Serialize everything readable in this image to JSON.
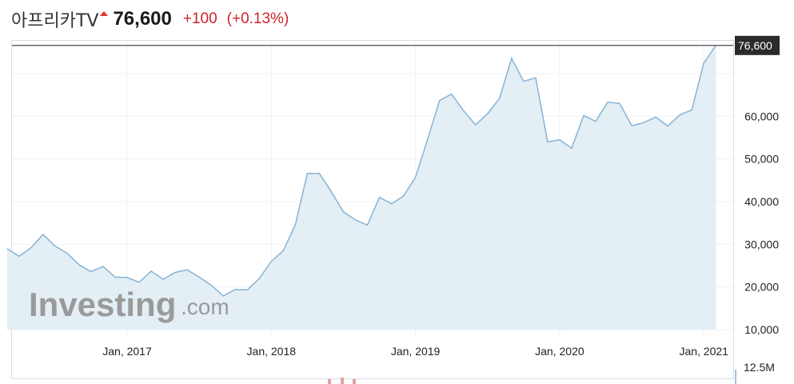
{
  "header": {
    "stock_name": "아프리카TV",
    "price": "76,600",
    "change": "+100",
    "change_pct": "(+0.13%)",
    "up_color": "#e5342f",
    "change_color": "#d2232a"
  },
  "watermark": {
    "brand": "Investing",
    "suffix": ".com"
  },
  "volume_label": "12.5M",
  "chart_data": {
    "type": "area",
    "line_color": "#86b3d5",
    "fill_color": "#e3eef5",
    "x_ticks": [
      "Jan, 2017",
      "Jan, 2018",
      "Jan, 2019",
      "Jan, 2020",
      "Jan, 2021"
    ],
    "y_ticks": [
      "10,000",
      "20,000",
      "30,000",
      "40,000",
      "50,000",
      "60,000"
    ],
    "ylim": [
      10000,
      77500
    ],
    "last_label": "76,600",
    "last_value": 76600,
    "grid": true,
    "series": [
      {
        "values": [
          [
            "2016-03",
            29000
          ],
          [
            "2016-04",
            27200
          ],
          [
            "2016-05",
            29200
          ],
          [
            "2016-06",
            32300
          ],
          [
            "2016-07",
            29600
          ],
          [
            "2016-08",
            27900
          ],
          [
            "2016-09",
            25200
          ],
          [
            "2016-10",
            23600
          ],
          [
            "2016-11",
            24800
          ],
          [
            "2016-12",
            22300
          ],
          [
            "2017-01",
            22200
          ],
          [
            "2017-02",
            21100
          ],
          [
            "2017-03",
            23700
          ],
          [
            "2017-04",
            21800
          ],
          [
            "2017-05",
            23400
          ],
          [
            "2017-06",
            24000
          ],
          [
            "2017-07",
            22300
          ],
          [
            "2017-08",
            20400
          ],
          [
            "2017-09",
            17900
          ],
          [
            "2017-10",
            19400
          ],
          [
            "2017-11",
            19300
          ],
          [
            "2017-12",
            22000
          ],
          [
            "2018-01",
            26000
          ],
          [
            "2018-02",
            28500
          ],
          [
            "2018-03",
            34600
          ],
          [
            "2018-04",
            46600
          ],
          [
            "2018-05",
            46600
          ],
          [
            "2018-06",
            42300
          ],
          [
            "2018-07",
            37600
          ],
          [
            "2018-08",
            35700
          ],
          [
            "2018-09",
            34500
          ],
          [
            "2018-10",
            41000
          ],
          [
            "2018-11",
            39500
          ],
          [
            "2018-12",
            41300
          ],
          [
            "2019-01",
            45700
          ],
          [
            "2019-02",
            54500
          ],
          [
            "2019-03",
            63700
          ],
          [
            "2019-04",
            65200
          ],
          [
            "2019-05",
            61300
          ],
          [
            "2019-06",
            58000
          ],
          [
            "2019-07",
            60600
          ],
          [
            "2019-08",
            64200
          ],
          [
            "2019-09",
            73600
          ],
          [
            "2019-10",
            68200
          ],
          [
            "2019-11",
            69000
          ],
          [
            "2019-12",
            54000
          ],
          [
            "2020-01",
            54500
          ],
          [
            "2020-02",
            52500
          ],
          [
            "2020-03",
            60200
          ],
          [
            "2020-04",
            58800
          ],
          [
            "2020-05",
            63300
          ],
          [
            "2020-06",
            63000
          ],
          [
            "2020-07",
            57800
          ],
          [
            "2020-08",
            58500
          ],
          [
            "2020-09",
            59800
          ],
          [
            "2020-10",
            57700
          ],
          [
            "2020-11",
            60300
          ],
          [
            "2020-12",
            61500
          ],
          [
            "2021-01",
            72500
          ],
          [
            "2021-02",
            76600
          ]
        ]
      }
    ]
  }
}
